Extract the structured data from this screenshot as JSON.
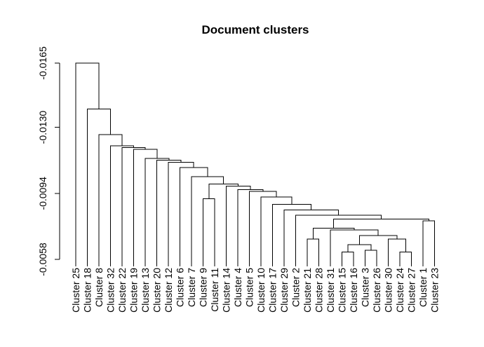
{
  "chart_data": {
    "type": "dendrogram",
    "title": "Document clusters",
    "xlabel": "",
    "ylabel": "",
    "y_axis_ticks": [
      -0.0165,
      -0.013,
      -0.0094,
      -0.0058
    ],
    "y_axis_tick_labels": [
      "-0.0165",
      "-0.0130",
      "-0.0094",
      "-0.0058"
    ],
    "ylim": [
      -0.0165,
      -0.0058
    ],
    "leaves": [
      "Cluster 25",
      "Cluster 18",
      "Cluster 8",
      "Cluster 32",
      "Cluster 22",
      "Cluster 19",
      "Cluster 13",
      "Cluster 20",
      "Cluster 12",
      "Cluster 6",
      "Cluster 7",
      "Cluster 9",
      "Cluster 11",
      "Cluster 14",
      "Cluster 4",
      "Cluster 5",
      "Cluster 10",
      "Cluster 17",
      "Cluster 29",
      "Cluster 2",
      "Cluster 21",
      "Cluster 28",
      "Cluster 31",
      "Cluster 15",
      "Cluster 16",
      "Cluster 3",
      "Cluster 26",
      "Cluster 30",
      "Cluster 24",
      "Cluster 27",
      "Cluster 1",
      "Cluster 23"
    ],
    "merges": [
      {
        "left": "Cluster 15",
        "right": "Cluster 16",
        "height": -0.0062
      },
      {
        "left": "Cluster 3",
        "right": "Cluster 26",
        "height": -0.0063
      },
      {
        "left": "Cluster 24",
        "right": "Cluster 27",
        "height": -0.0062
      },
      {
        "left": "Cluster 21",
        "right": "Cluster 28",
        "height": -0.0069
      },
      {
        "left": "m1",
        "right": "m2",
        "height": -0.0066
      },
      {
        "left": "Cluster 30",
        "right": "m3",
        "height": -0.0069
      },
      {
        "left": "m5",
        "right": "m6",
        "height": -0.0071
      },
      {
        "left": "Cluster 31",
        "right": "m7",
        "height": -0.0074
      },
      {
        "left": "m4",
        "right": "m8",
        "height": -0.0075
      },
      {
        "left": "Cluster 1",
        "right": "Cluster 23",
        "height": -0.0079
      },
      {
        "left": "m9",
        "right": "m10",
        "height": -0.008
      },
      {
        "left": "Cluster 2",
        "right": "m11",
        "height": -0.0082
      },
      {
        "left": "Cluster 29",
        "right": "m12",
        "height": -0.0085
      },
      {
        "left": "Cluster 17",
        "right": "m13",
        "height": -0.0088
      },
      {
        "left": "Cluster 10",
        "right": "m14",
        "height": -0.0092
      },
      {
        "left": "Cluster 5",
        "right": "m15",
        "height": -0.0095
      },
      {
        "left": "Cluster 4",
        "right": "m16",
        "height": -0.0096
      },
      {
        "left": "Cluster 14",
        "right": "m17",
        "height": -0.0098
      },
      {
        "left": "Cluster 9",
        "right": "Cluster 11",
        "height": -0.0091
      },
      {
        "left": "m19",
        "right": "m18",
        "height": -0.0099
      },
      {
        "left": "Cluster 7",
        "right": "m20",
        "height": -0.0103
      },
      {
        "left": "Cluster 6",
        "right": "m21",
        "height": -0.0108
      },
      {
        "left": "Cluster 12",
        "right": "m22",
        "height": -0.0111
      },
      {
        "left": "Cluster 20",
        "right": "m23",
        "height": -0.0112
      },
      {
        "left": "Cluster 13",
        "right": "m24",
        "height": -0.0113
      },
      {
        "left": "Cluster 19",
        "right": "m25",
        "height": -0.0118
      },
      {
        "left": "Cluster 22",
        "right": "m26",
        "height": -0.0119
      },
      {
        "left": "Cluster 32",
        "right": "m27",
        "height": -0.012
      },
      {
        "left": "Cluster 8",
        "right": "m28",
        "height": -0.0126
      },
      {
        "left": "Cluster 18",
        "right": "m29",
        "height": -0.014
      },
      {
        "left": "Cluster 25",
        "right": "m30",
        "height": -0.0165
      }
    ]
  }
}
